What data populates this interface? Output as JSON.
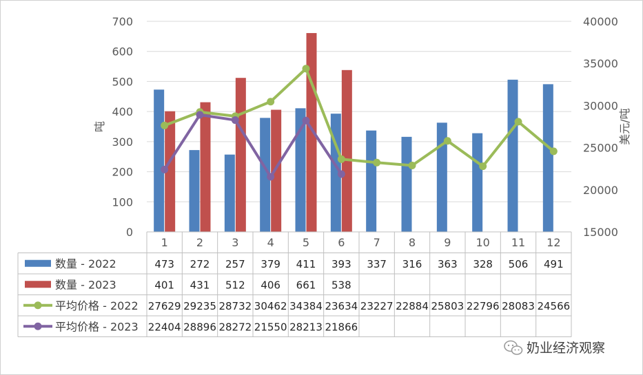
{
  "chart_data": {
    "type": "bar+line",
    "categories": [
      "1",
      "2",
      "3",
      "4",
      "5",
      "6",
      "7",
      "8",
      "9",
      "10",
      "11",
      "12"
    ],
    "left_axis": {
      "label": "吨",
      "min": 0,
      "max": 700,
      "step": 100
    },
    "right_axis": {
      "label": "美元/吨",
      "min": 15000,
      "max": 40000,
      "step": 5000
    },
    "series": [
      {
        "name": "数量 - 2022",
        "kind": "bar",
        "axis": "left",
        "color": "#4F81BD",
        "values": [
          473,
          272,
          257,
          379,
          411,
          393,
          337,
          316,
          363,
          328,
          506,
          491
        ]
      },
      {
        "name": "数量 - 2023",
        "kind": "bar",
        "axis": "left",
        "color": "#C0504D",
        "values": [
          401,
          431,
          512,
          406,
          661,
          538,
          null,
          null,
          null,
          null,
          null,
          null
        ]
      },
      {
        "name": "平均价格 - 2022",
        "kind": "line",
        "axis": "right",
        "color": "#9BBB59",
        "values": [
          27629,
          29235,
          28732,
          30462,
          34384,
          23634,
          23227,
          22884,
          25803,
          22796,
          28083,
          24566
        ]
      },
      {
        "name": "平均价格 - 2023",
        "kind": "line",
        "axis": "right",
        "color": "#8064A2",
        "values": [
          22404,
          28896,
          28272,
          21550,
          28213,
          21866,
          null,
          null,
          null,
          null,
          null,
          null
        ]
      }
    ],
    "grid": true,
    "data_table": true
  },
  "watermark": {
    "text": "奶业经济观察"
  }
}
